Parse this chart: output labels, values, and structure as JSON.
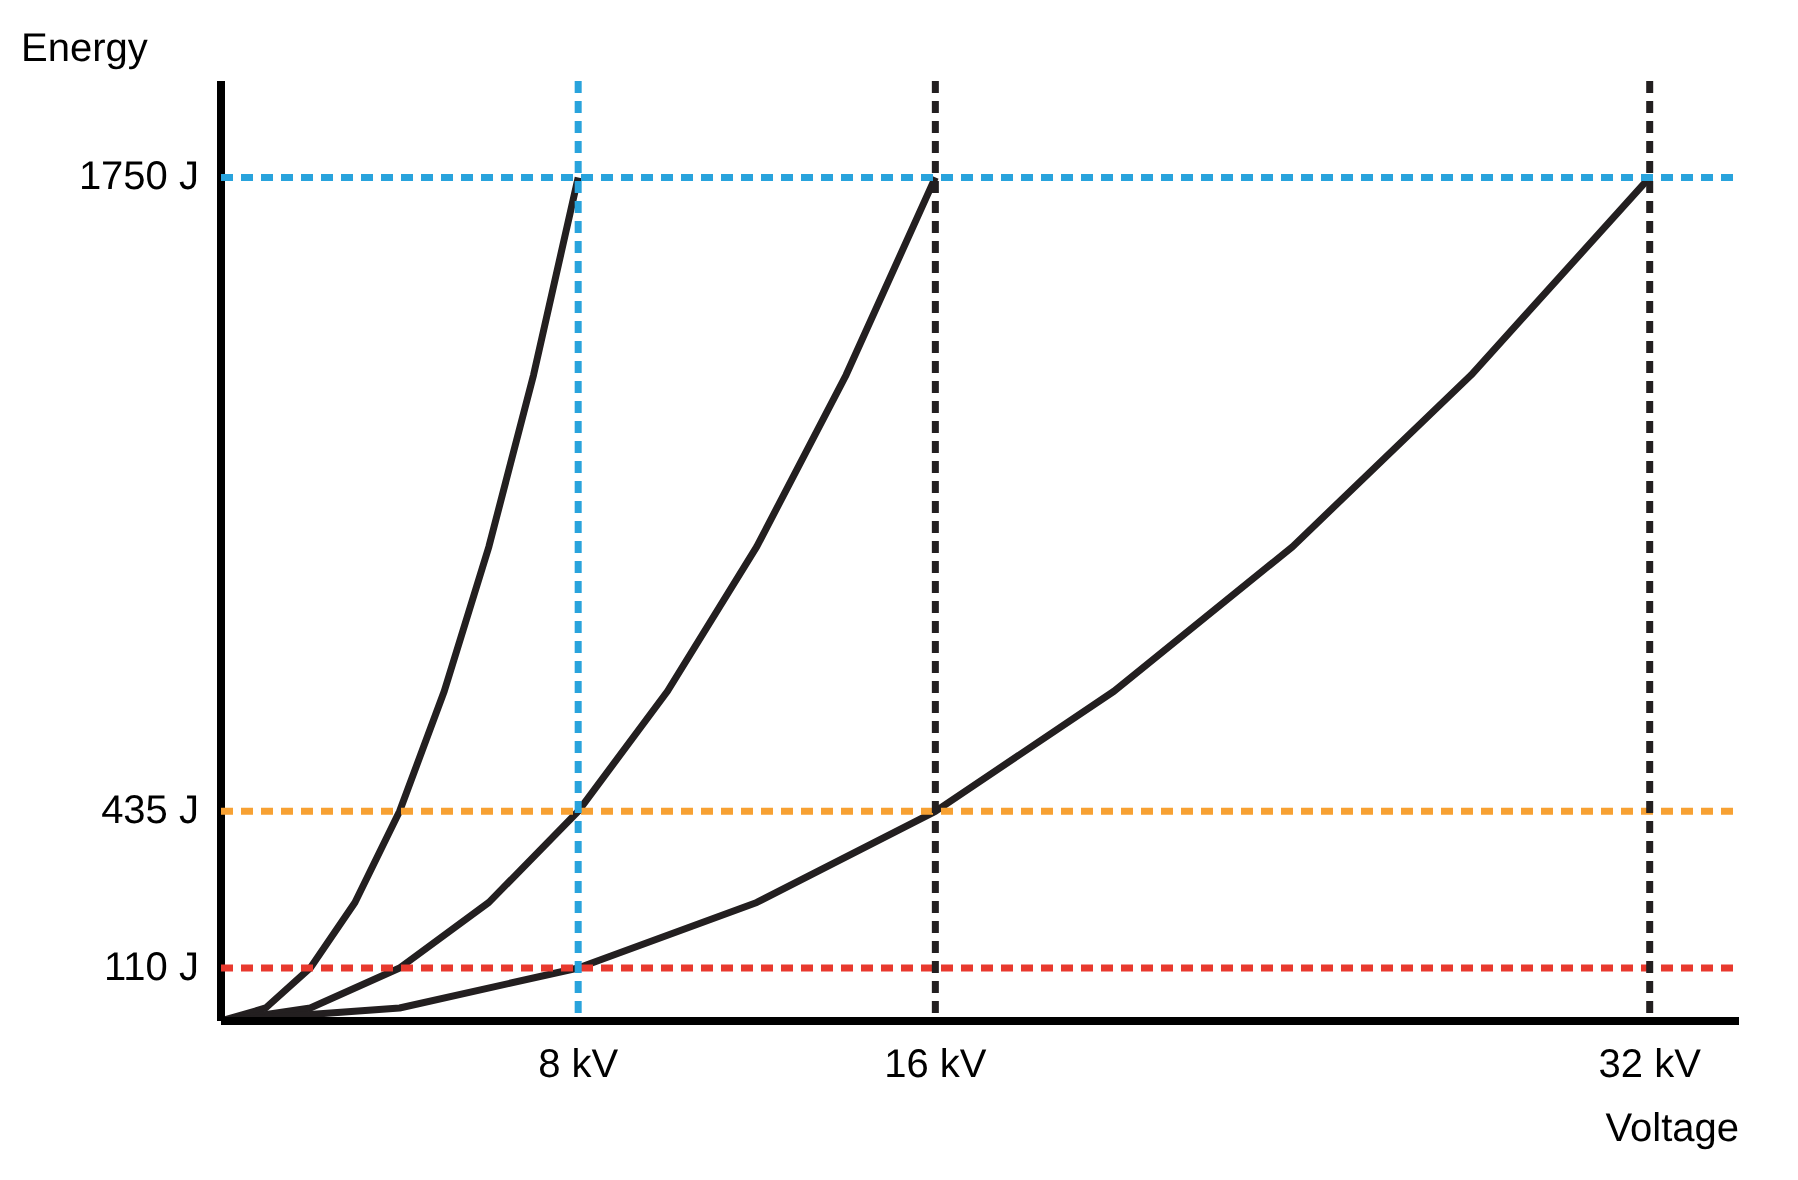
{
  "chart_data": {
    "type": "line",
    "xlabel": "Voltage",
    "ylabel": "Energy",
    "xlim": [
      0,
      34
    ],
    "ylim": [
      0,
      1950
    ],
    "xticks": [
      {
        "value": 8,
        "label": "8 kV"
      },
      {
        "value": 16,
        "label": "16 kV"
      },
      {
        "value": 32,
        "label": "32 kV"
      }
    ],
    "yticks": [
      {
        "value": 110,
        "label": "110 J"
      },
      {
        "value": 435,
        "label": "435 J"
      },
      {
        "value": 1750,
        "label": "1750 J"
      }
    ],
    "grid": false,
    "marker": "none",
    "line_style": "solid",
    "series": [
      {
        "color": "#231f20",
        "x": [
          0,
          1,
          2,
          3,
          4,
          5,
          6,
          7,
          8
        ],
        "values": [
          0,
          27,
          110,
          246,
          435,
          684,
          984,
          1340,
          1750
        ]
      },
      {
        "color": "#231f20",
        "x": [
          0,
          2,
          4,
          6,
          8,
          10,
          12,
          14,
          16
        ],
        "values": [
          0,
          27,
          110,
          246,
          435,
          684,
          984,
          1340,
          1750
        ]
      },
      {
        "color": "#231f20",
        "x": [
          0,
          4,
          8,
          12,
          16,
          20,
          24,
          28,
          32
        ],
        "values": [
          0,
          27,
          110,
          246,
          435,
          684,
          984,
          1340,
          1750
        ]
      }
    ],
    "ref_lines": [
      {
        "axis": "y",
        "value": 1750,
        "color": "#29a3dc",
        "line_style": "dashed"
      },
      {
        "axis": "y",
        "value": 435,
        "color": "#f7a133",
        "line_style": "dashed"
      },
      {
        "axis": "y",
        "value": 110,
        "color": "#e8392e",
        "line_style": "dashed"
      },
      {
        "axis": "x",
        "value": 8,
        "color": "#29a3dc",
        "line_style": "dashed"
      },
      {
        "axis": "x",
        "value": 16,
        "color": "#231f20",
        "line_style": "dashed"
      },
      {
        "axis": "x",
        "value": 32,
        "color": "#231f20",
        "line_style": "dashed"
      }
    ]
  }
}
